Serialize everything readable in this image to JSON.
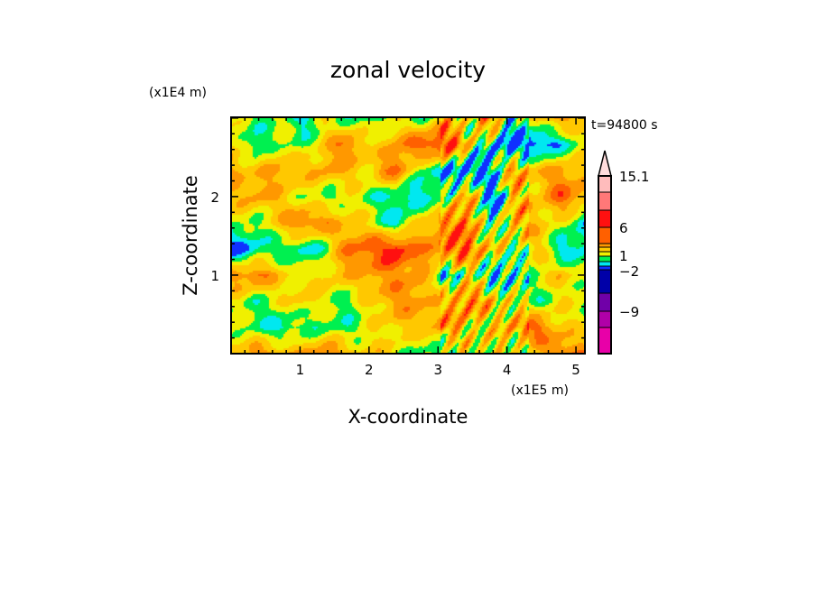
{
  "chart_data": {
    "type": "heatmap",
    "title": "zonal velocity",
    "xlabel": "X-coordinate",
    "ylabel": "Z-coordinate",
    "x_multiplier": "(x1E5 m)",
    "y_multiplier": "(x1E4 m)",
    "time_label": "t=94800 s",
    "xlim": [
      0,
      5.13
    ],
    "ylim": [
      0,
      3.01
    ],
    "xticks": [
      "1",
      "2",
      "3",
      "4",
      "5"
    ],
    "xtick_values": [
      1,
      2,
      3,
      4,
      5
    ],
    "yticks": [
      "1",
      "2"
    ],
    "ytick_values": [
      1,
      2
    ],
    "colorbar": {
      "levels": [
        -15,
        -12,
        -9,
        -6,
        -2,
        -1,
        0,
        1,
        2,
        3,
        4,
        6,
        9,
        12,
        15.1
      ],
      "colors": [
        "#e800a8",
        "#b000a8",
        "#7000a8",
        "#0000a8",
        "#1030ff",
        "#00e8f0",
        "#00f050",
        "#f0f000",
        "#ffc800",
        "#ff9800",
        "#ff6000",
        "#ff1010",
        "#ff7878",
        "#ffbcbc",
        "#ffdcdc"
      ],
      "labels": [
        "15.1",
        "6",
        "1",
        "−2",
        "−9"
      ],
      "label_values": [
        15.1,
        6,
        1,
        -2,
        -9
      ],
      "extend": "max"
    },
    "grid_x_range": [
      0,
      5.13
    ],
    "grid_z_range_top_to_bottom": [
      2.85,
      0.15
    ],
    "z": [
      [
        0.5,
        -0.5,
        0.5,
        -1.5,
        0.5,
        -0.5,
        -0.5,
        0.5,
        -0.5,
        1.5,
        0.5,
        3.5,
        -1.5,
        1.5,
        2.5,
        1.5
      ],
      [
        1.5,
        -1.5,
        0.5,
        -0.5,
        1.5,
        3.5,
        0.5,
        2.5,
        3.5,
        5,
        1.5,
        -1.5,
        -3,
        -3,
        -1.5,
        0.5
      ],
      [
        2.5,
        1.5,
        2.5,
        1.5,
        2.5,
        1.5,
        1.5,
        3.5,
        -0.5,
        -1.5,
        -3,
        -1.5,
        2.5,
        1.5,
        2.5,
        1.5
      ],
      [
        1.5,
        2.5,
        1.5,
        0.5,
        -0.5,
        0.5,
        -0.5,
        -1.5,
        -1.5,
        -0.5,
        2.5,
        -3,
        1.5,
        1.5,
        3.5,
        2.5
      ],
      [
        0.5,
        -0.5,
        1.5,
        3.5,
        2.5,
        1.5,
        0.5,
        -1.5,
        1.5,
        2.5,
        3.5,
        -1.5,
        2.5,
        1.5,
        0.5,
        -1.5
      ],
      [
        -3,
        -1.5,
        -0.5,
        -1.5,
        -0.5,
        3.5,
        3.5,
        5,
        2.5,
        3.5,
        3.5,
        1.5,
        -0.5,
        1.5,
        -1.5,
        -1.5
      ],
      [
        2.5,
        3.5,
        1.5,
        0.5,
        1.5,
        1.5,
        2.5,
        2.5,
        2.5,
        -1.5,
        0.5,
        -1.5,
        -1.5,
        0.5,
        1.5,
        0.5
      ],
      [
        0.5,
        -0.5,
        0.5,
        1.5,
        0.5,
        -0.5,
        1.5,
        2.5,
        2.5,
        1.5,
        3.5,
        1.5,
        0.5,
        -0.5,
        0.5,
        0.5
      ],
      [
        0.5,
        -0.5,
        -1.5,
        -0.5,
        -0.5,
        -0.5,
        0.5,
        1.5,
        1.5,
        2.5,
        1.5,
        0.5,
        2.5,
        3.5,
        1.5,
        0.5
      ],
      [
        1.5,
        2.5,
        2.5,
        1.5,
        3.5,
        1.5,
        1.5,
        0.5,
        -0.5,
        -0.5,
        0.5,
        1.5,
        -0.5,
        1.5,
        3.5,
        2.5
      ]
    ]
  }
}
